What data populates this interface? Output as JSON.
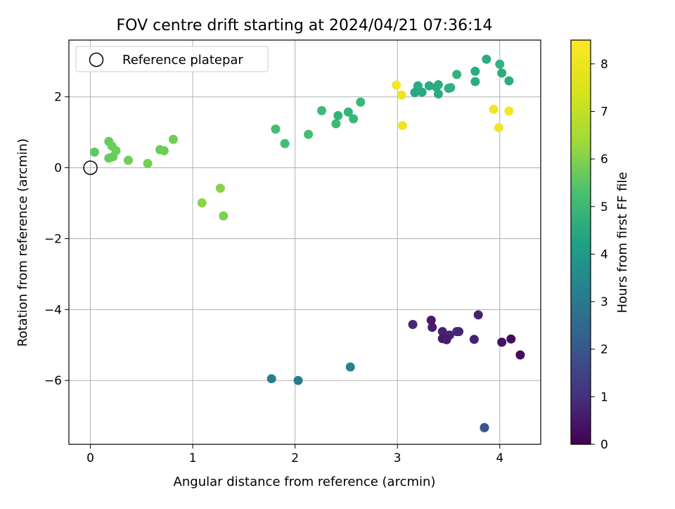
{
  "chart_data": {
    "type": "scatter",
    "title": "FOV centre drift starting at 2024/04/21 07:36:14",
    "xlabel": "Angular distance from reference (arcmin)",
    "ylabel": "Rotation from reference (arcmin)",
    "xlim": [
      -0.21,
      4.4
    ],
    "ylim": [
      -7.8,
      3.6
    ],
    "xticks": [
      "0",
      "1",
      "2",
      "3",
      "4"
    ],
    "yticks": [
      "−6",
      "−4",
      "−2",
      "0",
      "2"
    ],
    "grid": true,
    "legend": {
      "position": "top-left",
      "label": "Reference platepar"
    },
    "reference_point": {
      "x": 0,
      "y": 0
    },
    "colorbar": {
      "label": "Hours from first FF file",
      "range": [
        0,
        8.5
      ],
      "ticks": [
        "0",
        "1",
        "2",
        "3",
        "4",
        "5",
        "6",
        "7",
        "8"
      ],
      "colormap": "viridis"
    },
    "points": [
      {
        "x": 3.15,
        "y": -4.42,
        "c": 0.9
      },
      {
        "x": 3.33,
        "y": -4.3,
        "c": 0.6
      },
      {
        "x": 3.34,
        "y": -4.5,
        "c": 0.7
      },
      {
        "x": 3.44,
        "y": -4.62,
        "c": 0.8
      },
      {
        "x": 3.51,
        "y": -4.72,
        "c": 0.9
      },
      {
        "x": 3.44,
        "y": -4.82,
        "c": 0.6
      },
      {
        "x": 3.48,
        "y": -4.85,
        "c": 0.7
      },
      {
        "x": 3.58,
        "y": -4.62,
        "c": 1.1
      },
      {
        "x": 3.6,
        "y": -4.62,
        "c": 0.9
      },
      {
        "x": 3.75,
        "y": -4.84,
        "c": 0.8
      },
      {
        "x": 3.79,
        "y": -4.15,
        "c": 0.8
      },
      {
        "x": 4.02,
        "y": -4.92,
        "c": 0.4
      },
      {
        "x": 4.11,
        "y": -4.83,
        "c": 0.3
      },
      {
        "x": 4.2,
        "y": -5.28,
        "c": 0.3
      },
      {
        "x": 3.85,
        "y": -7.33,
        "c": 2.1
      },
      {
        "x": 3.85,
        "y": -7.33,
        "c": 2.3
      },
      {
        "x": 1.77,
        "y": -5.95,
        "c": 3.7
      },
      {
        "x": 2.03,
        "y": -6.0,
        "c": 3.5
      },
      {
        "x": 2.54,
        "y": -5.62,
        "c": 3.8
      },
      {
        "x": 1.81,
        "y": 1.09,
        "c": 5.9
      },
      {
        "x": 1.9,
        "y": 0.68,
        "c": 5.9
      },
      {
        "x": 2.13,
        "y": 0.94,
        "c": 5.9
      },
      {
        "x": 2.26,
        "y": 1.61,
        "c": 5.8
      },
      {
        "x": 2.4,
        "y": 1.24,
        "c": 5.8
      },
      {
        "x": 2.42,
        "y": 1.47,
        "c": 5.6
      },
      {
        "x": 2.52,
        "y": 1.57,
        "c": 5.6
      },
      {
        "x": 2.57,
        "y": 1.38,
        "c": 5.7
      },
      {
        "x": 2.64,
        "y": 1.85,
        "c": 5.7
      },
      {
        "x": 3.17,
        "y": 2.12,
        "c": 5.1
      },
      {
        "x": 3.2,
        "y": 2.31,
        "c": 5.2
      },
      {
        "x": 3.24,
        "y": 2.13,
        "c": 5.1
      },
      {
        "x": 3.31,
        "y": 2.31,
        "c": 5.2
      },
      {
        "x": 3.38,
        "y": 2.27,
        "c": 5.2
      },
      {
        "x": 3.4,
        "y": 2.34,
        "c": 5.3
      },
      {
        "x": 3.4,
        "y": 2.08,
        "c": 5.2
      },
      {
        "x": 3.5,
        "y": 2.24,
        "c": 5.4
      },
      {
        "x": 3.52,
        "y": 2.26,
        "c": 5.4
      },
      {
        "x": 3.58,
        "y": 2.63,
        "c": 5.5
      },
      {
        "x": 3.76,
        "y": 2.43,
        "c": 5.3
      },
      {
        "x": 3.76,
        "y": 2.72,
        "c": 5.2
      },
      {
        "x": 3.87,
        "y": 3.06,
        "c": 5.3
      },
      {
        "x": 4.0,
        "y": 2.92,
        "c": 5.5
      },
      {
        "x": 4.02,
        "y": 2.67,
        "c": 5.3
      },
      {
        "x": 4.09,
        "y": 2.45,
        "c": 5.3
      },
      {
        "x": 0.04,
        "y": 0.44,
        "c": 6.4
      },
      {
        "x": 0.18,
        "y": 0.74,
        "c": 6.5
      },
      {
        "x": 0.18,
        "y": 0.27,
        "c": 6.5
      },
      {
        "x": 0.21,
        "y": 0.61,
        "c": 6.6
      },
      {
        "x": 0.22,
        "y": 0.31,
        "c": 6.5
      },
      {
        "x": 0.25,
        "y": 0.48,
        "c": 6.6
      },
      {
        "x": 0.37,
        "y": 0.21,
        "c": 6.6
      },
      {
        "x": 0.56,
        "y": 0.12,
        "c": 6.7
      },
      {
        "x": 0.68,
        "y": 0.51,
        "c": 6.5
      },
      {
        "x": 0.72,
        "y": 0.48,
        "c": 6.6
      },
      {
        "x": 0.81,
        "y": 0.8,
        "c": 6.6
      },
      {
        "x": 1.09,
        "y": -0.99,
        "c": 7.0
      },
      {
        "x": 1.27,
        "y": -0.58,
        "c": 6.9
      },
      {
        "x": 1.3,
        "y": -1.36,
        "c": 6.8
      },
      {
        "x": 2.99,
        "y": 2.33,
        "c": 8.4
      },
      {
        "x": 3.04,
        "y": 2.05,
        "c": 8.3
      },
      {
        "x": 3.05,
        "y": 1.19,
        "c": 8.3
      },
      {
        "x": 3.94,
        "y": 1.65,
        "c": 8.3
      },
      {
        "x": 3.99,
        "y": 1.13,
        "c": 8.3
      },
      {
        "x": 4.09,
        "y": 1.6,
        "c": 8.4
      }
    ]
  }
}
